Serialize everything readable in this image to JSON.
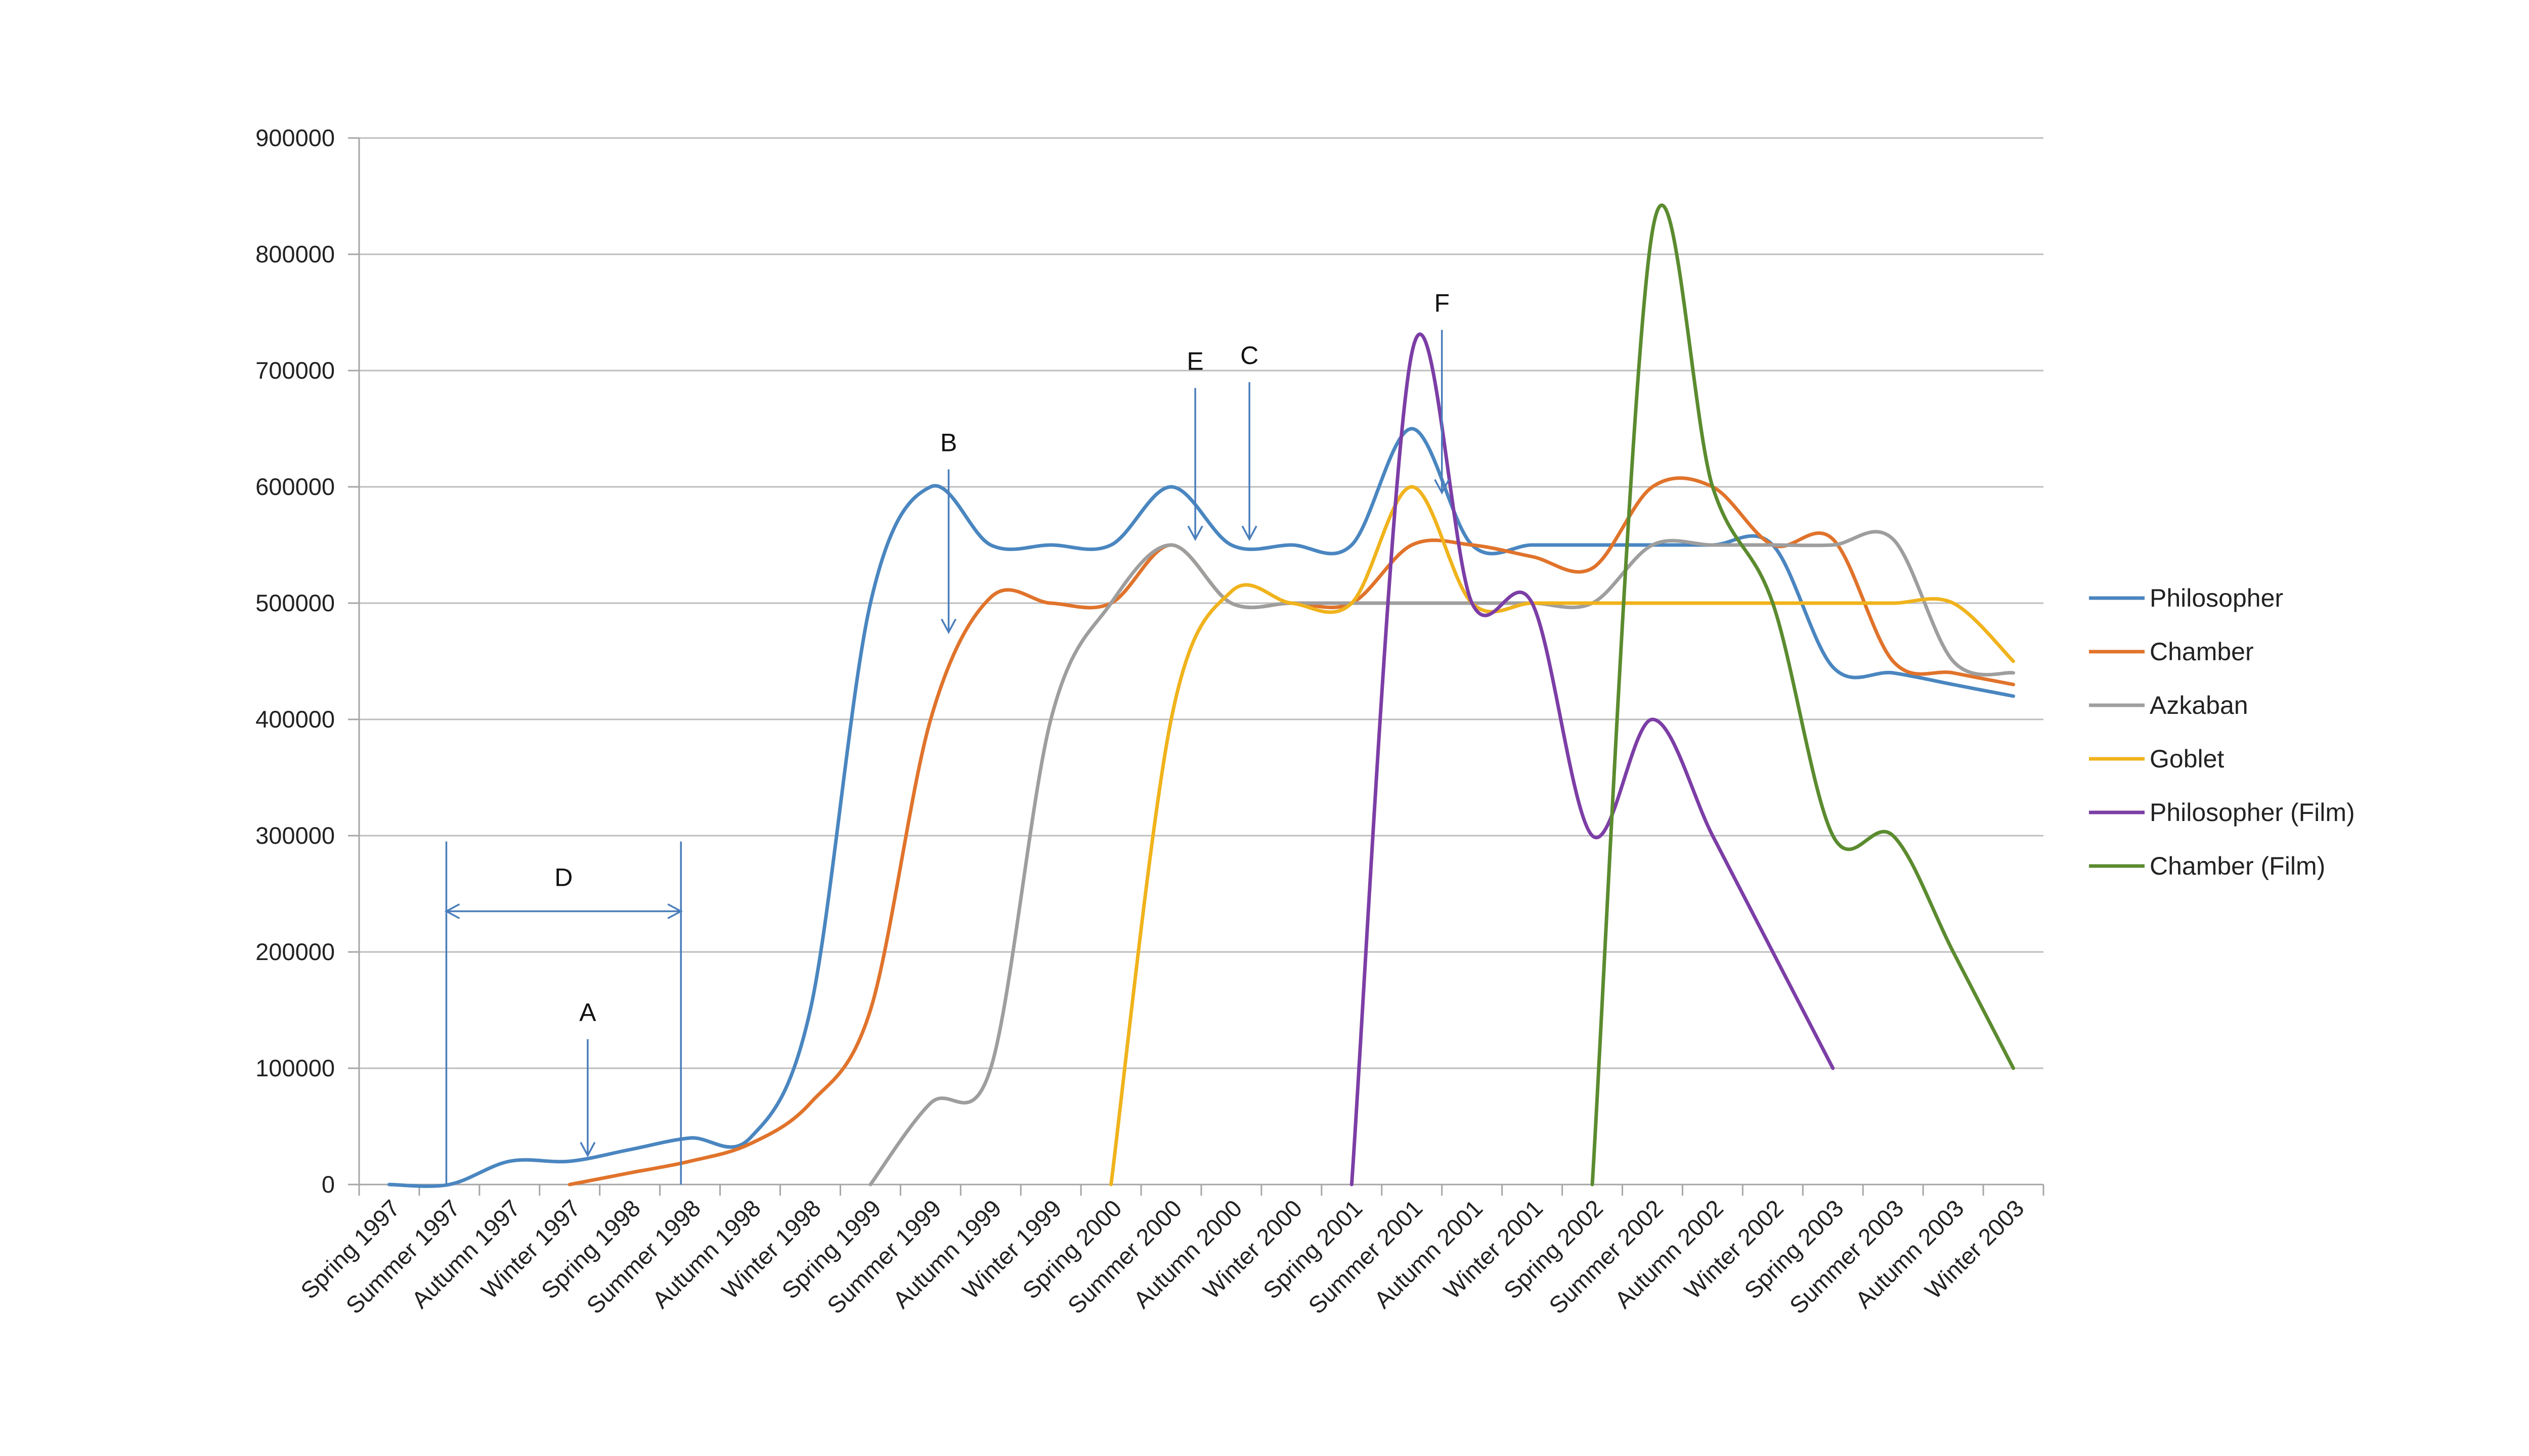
{
  "chart_data": {
    "type": "line",
    "title": "",
    "xlabel": "",
    "ylabel": "",
    "ylim": [
      0,
      900000
    ],
    "yticks": [
      0,
      100000,
      200000,
      300000,
      400000,
      500000,
      600000,
      700000,
      800000,
      900000
    ],
    "grid": true,
    "legend_position": "right",
    "categories": [
      "Spring 1997",
      "Summer 1997",
      "Autumn 1997",
      "Winter 1997",
      "Spring 1998",
      "Summer 1998",
      "Autumn 1998",
      "Winter 1998",
      "Spring 1999",
      "Summer 1999",
      "Autumn 1999",
      "Winter 1999",
      "Spring 2000",
      "Summer 2000",
      "Autumn 2000",
      "Winter 2000",
      "Spring 2001",
      "Summer 2001",
      "Autumn 2001",
      "Winter 2001",
      "Spring 2002",
      "Summer 2002",
      "Autumn 2002",
      "Winter 2002",
      "Spring 2003",
      "Summer 2003",
      "Autumn 2003",
      "Winter 2003"
    ],
    "series": [
      {
        "name": "Philosopher",
        "color": "#4a86c0",
        "values": [
          0,
          0,
          20000,
          20000,
          30000,
          40000,
          40000,
          150000,
          500000,
          600000,
          550000,
          550000,
          550000,
          600000,
          550000,
          550000,
          550000,
          650000,
          550000,
          550000,
          550000,
          550000,
          550000,
          550000,
          445000,
          440000,
          430000,
          420000
        ]
      },
      {
        "name": "Chamber",
        "color": "#e0732b",
        "values": [
          null,
          null,
          null,
          0,
          10000,
          20000,
          35000,
          70000,
          150000,
          400000,
          505000,
          500000,
          500000,
          550000,
          500000,
          500000,
          500000,
          550000,
          550000,
          540000,
          530000,
          600000,
          600000,
          550000,
          555000,
          450000,
          440000,
          430000
        ]
      },
      {
        "name": "Azkaban",
        "color": "#9e9e9e",
        "values": [
          null,
          null,
          null,
          null,
          null,
          null,
          null,
          null,
          0,
          70000,
          100000,
          400000,
          500000,
          550000,
          500000,
          500000,
          500000,
          500000,
          500000,
          500000,
          500000,
          550000,
          550000,
          550000,
          550000,
          555000,
          450000,
          440000
        ]
      },
      {
        "name": "Goblet",
        "color": "#f0b31c",
        "values": [
          null,
          null,
          null,
          null,
          null,
          null,
          null,
          null,
          null,
          null,
          null,
          null,
          0,
          400000,
          510000,
          500000,
          500000,
          600000,
          500000,
          500000,
          500000,
          500000,
          500000,
          500000,
          500000,
          500000,
          500000,
          450000
        ]
      },
      {
        "name": "Philosopher (Film)",
        "color": "#7c3ea6",
        "values": [
          null,
          null,
          null,
          null,
          null,
          null,
          null,
          null,
          null,
          null,
          null,
          null,
          null,
          null,
          null,
          null,
          0,
          715000,
          500000,
          500000,
          300000,
          400000,
          300000,
          200000,
          100000,
          null,
          null,
          null
        ]
      },
      {
        "name": "Chamber (Film)",
        "color": "#5b8b2f",
        "values": [
          null,
          null,
          null,
          null,
          null,
          null,
          null,
          null,
          null,
          null,
          null,
          null,
          null,
          null,
          null,
          null,
          null,
          null,
          null,
          null,
          0,
          820000,
          600000,
          500000,
          300000,
          300000,
          200000,
          100000
        ]
      }
    ],
    "annotations": [
      {
        "label": "A",
        "kind": "arrow-down",
        "from_category": 3.3,
        "from_value": 125000,
        "to_value": 25000
      },
      {
        "label": "B",
        "kind": "arrow-down",
        "from_category": 9.3,
        "from_value": 615000,
        "to_value": 475000
      },
      {
        "label": "C",
        "kind": "arrow-down",
        "from_category": 14.3,
        "from_value": 690000,
        "to_value": 555000
      },
      {
        "label": "D",
        "kind": "bracket",
        "from_category": 0.95,
        "to_category": 4.85,
        "value": 235000
      },
      {
        "label": "E",
        "kind": "arrow-down",
        "from_category": 13.4,
        "from_value": 685000,
        "to_value": 555000
      },
      {
        "label": "F",
        "kind": "arrow-down",
        "from_category": 17.5,
        "from_value": 735000,
        "to_value": 595000
      }
    ]
  }
}
